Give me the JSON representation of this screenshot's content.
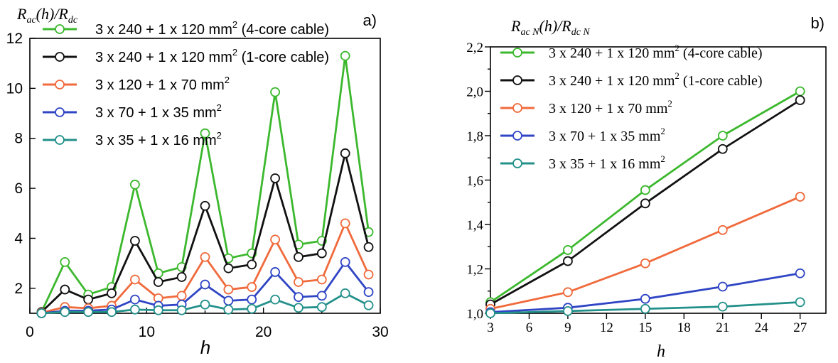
{
  "chart_data": [
    {
      "type": "line",
      "panel": "a)",
      "ylabel_parts": {
        "r1": "R",
        "s1": "ac",
        "mid": "(h)/R",
        "s2": "dc"
      },
      "xlabel": "h",
      "xlim": [
        0,
        30
      ],
      "ylim": [
        1,
        12
      ],
      "xticks": [
        0,
        10,
        20,
        30
      ],
      "xtick_labels": [
        "0",
        "10",
        "20",
        "30"
      ],
      "yticks": [
        2,
        4,
        6,
        8,
        10,
        12
      ],
      "ytick_labels": [
        "2",
        "4",
        "6",
        "8",
        "10",
        "12"
      ],
      "x": [
        1,
        3,
        5,
        7,
        9,
        11,
        13,
        15,
        17,
        19,
        21,
        23,
        25,
        27,
        29
      ],
      "series": [
        {
          "name": "3 x 240 + 1 x 120 mm2 (4-core cable)",
          "color": "#3cb82e",
          "values": [
            1.05,
            3.05,
            1.75,
            2.05,
            6.15,
            2.6,
            2.85,
            8.2,
            3.2,
            3.4,
            9.85,
            3.75,
            3.9,
            11.3,
            4.25
          ]
        },
        {
          "name": "3 x 240 + 1 x 120 mm2 (1-core cable)",
          "color": "#111111",
          "values": [
            1.05,
            1.95,
            1.55,
            1.8,
            3.9,
            2.25,
            2.45,
            5.3,
            2.8,
            2.95,
            6.4,
            3.25,
            3.4,
            7.4,
            3.65
          ]
        },
        {
          "name": "3 x 120 + 1 x 70 mm2",
          "color": "#f06a3c",
          "values": [
            1.02,
            1.25,
            1.2,
            1.3,
            2.35,
            1.6,
            1.7,
            3.25,
            1.95,
            2.05,
            3.95,
            2.25,
            2.35,
            4.6,
            2.55
          ]
        },
        {
          "name": "3 x 70 + 1 x 35 mm2",
          "color": "#2f45c4",
          "values": [
            1.0,
            1.1,
            1.1,
            1.15,
            1.55,
            1.3,
            1.35,
            2.15,
            1.5,
            1.55,
            2.65,
            1.65,
            1.7,
            3.05,
            1.85
          ]
        },
        {
          "name": "3 x 35 + 1 x 16 mm2",
          "color": "#23908a",
          "values": [
            1.0,
            1.05,
            1.05,
            1.05,
            1.15,
            1.12,
            1.12,
            1.35,
            1.15,
            1.18,
            1.55,
            1.22,
            1.25,
            1.8,
            1.32
          ]
        }
      ]
    },
    {
      "type": "line",
      "panel": "b)",
      "ylabel_parts": {
        "r1": "R",
        "s1": "ac N",
        "mid": "(h)/R",
        "s2": "dc N"
      },
      "xlabel": "h",
      "xlim": [
        3,
        29
      ],
      "ylim": [
        1.0,
        2.2
      ],
      "xticks": [
        3,
        6,
        9,
        12,
        15,
        18,
        21,
        24,
        27
      ],
      "xtick_labels": [
        "3",
        "6",
        "9",
        "12",
        "15",
        "18",
        "21",
        "24",
        "27"
      ],
      "yticks": [
        1.0,
        1.2,
        1.4,
        1.6,
        1.8,
        2.0,
        2.2
      ],
      "ytick_labels": [
        "1,0",
        "1,2",
        "1,4",
        "1,6",
        "1,8",
        "2,0",
        "2,2"
      ],
      "x": [
        3,
        9,
        15,
        21,
        27
      ],
      "series": [
        {
          "name": "3 x 240 + 1 x 120 mm2 (4-core cable)",
          "color": "#3cb82e",
          "values": [
            1.05,
            1.285,
            1.555,
            1.8,
            2.0
          ]
        },
        {
          "name": "3 x 240 + 1 x 120 mm2 (1-core cable)",
          "color": "#111111",
          "values": [
            1.04,
            1.235,
            1.495,
            1.74,
            1.96
          ]
        },
        {
          "name": "3 x 120 + 1 x 70 mm2",
          "color": "#f06a3c",
          "values": [
            1.02,
            1.095,
            1.225,
            1.375,
            1.525
          ]
        },
        {
          "name": "3 x 70 + 1 x 35 mm2",
          "color": "#2f45c4",
          "values": [
            1.005,
            1.025,
            1.065,
            1.12,
            1.18
          ]
        },
        {
          "name": "3 x 35 + 1 x 16 mm2",
          "color": "#23908a",
          "values": [
            1.0,
            1.01,
            1.02,
            1.03,
            1.05
          ]
        }
      ]
    }
  ],
  "legend": [
    {
      "main": "3 x 240 + 1 x 120 mm",
      "sup": "2",
      "tail": " (4-core cable)"
    },
    {
      "main": "3 x 240 + 1 x 120 mm",
      "sup": "2",
      "tail": " (1-core cable)"
    },
    {
      "main": "3 x 120 + 1 x 70 mm",
      "sup": "2",
      "tail": ""
    },
    {
      "main": "3 x 70 + 1 x 35 mm",
      "sup": "2",
      "tail": ""
    },
    {
      "main": "3 x 35 + 1 x 16 mm",
      "sup": "2",
      "tail": ""
    }
  ]
}
